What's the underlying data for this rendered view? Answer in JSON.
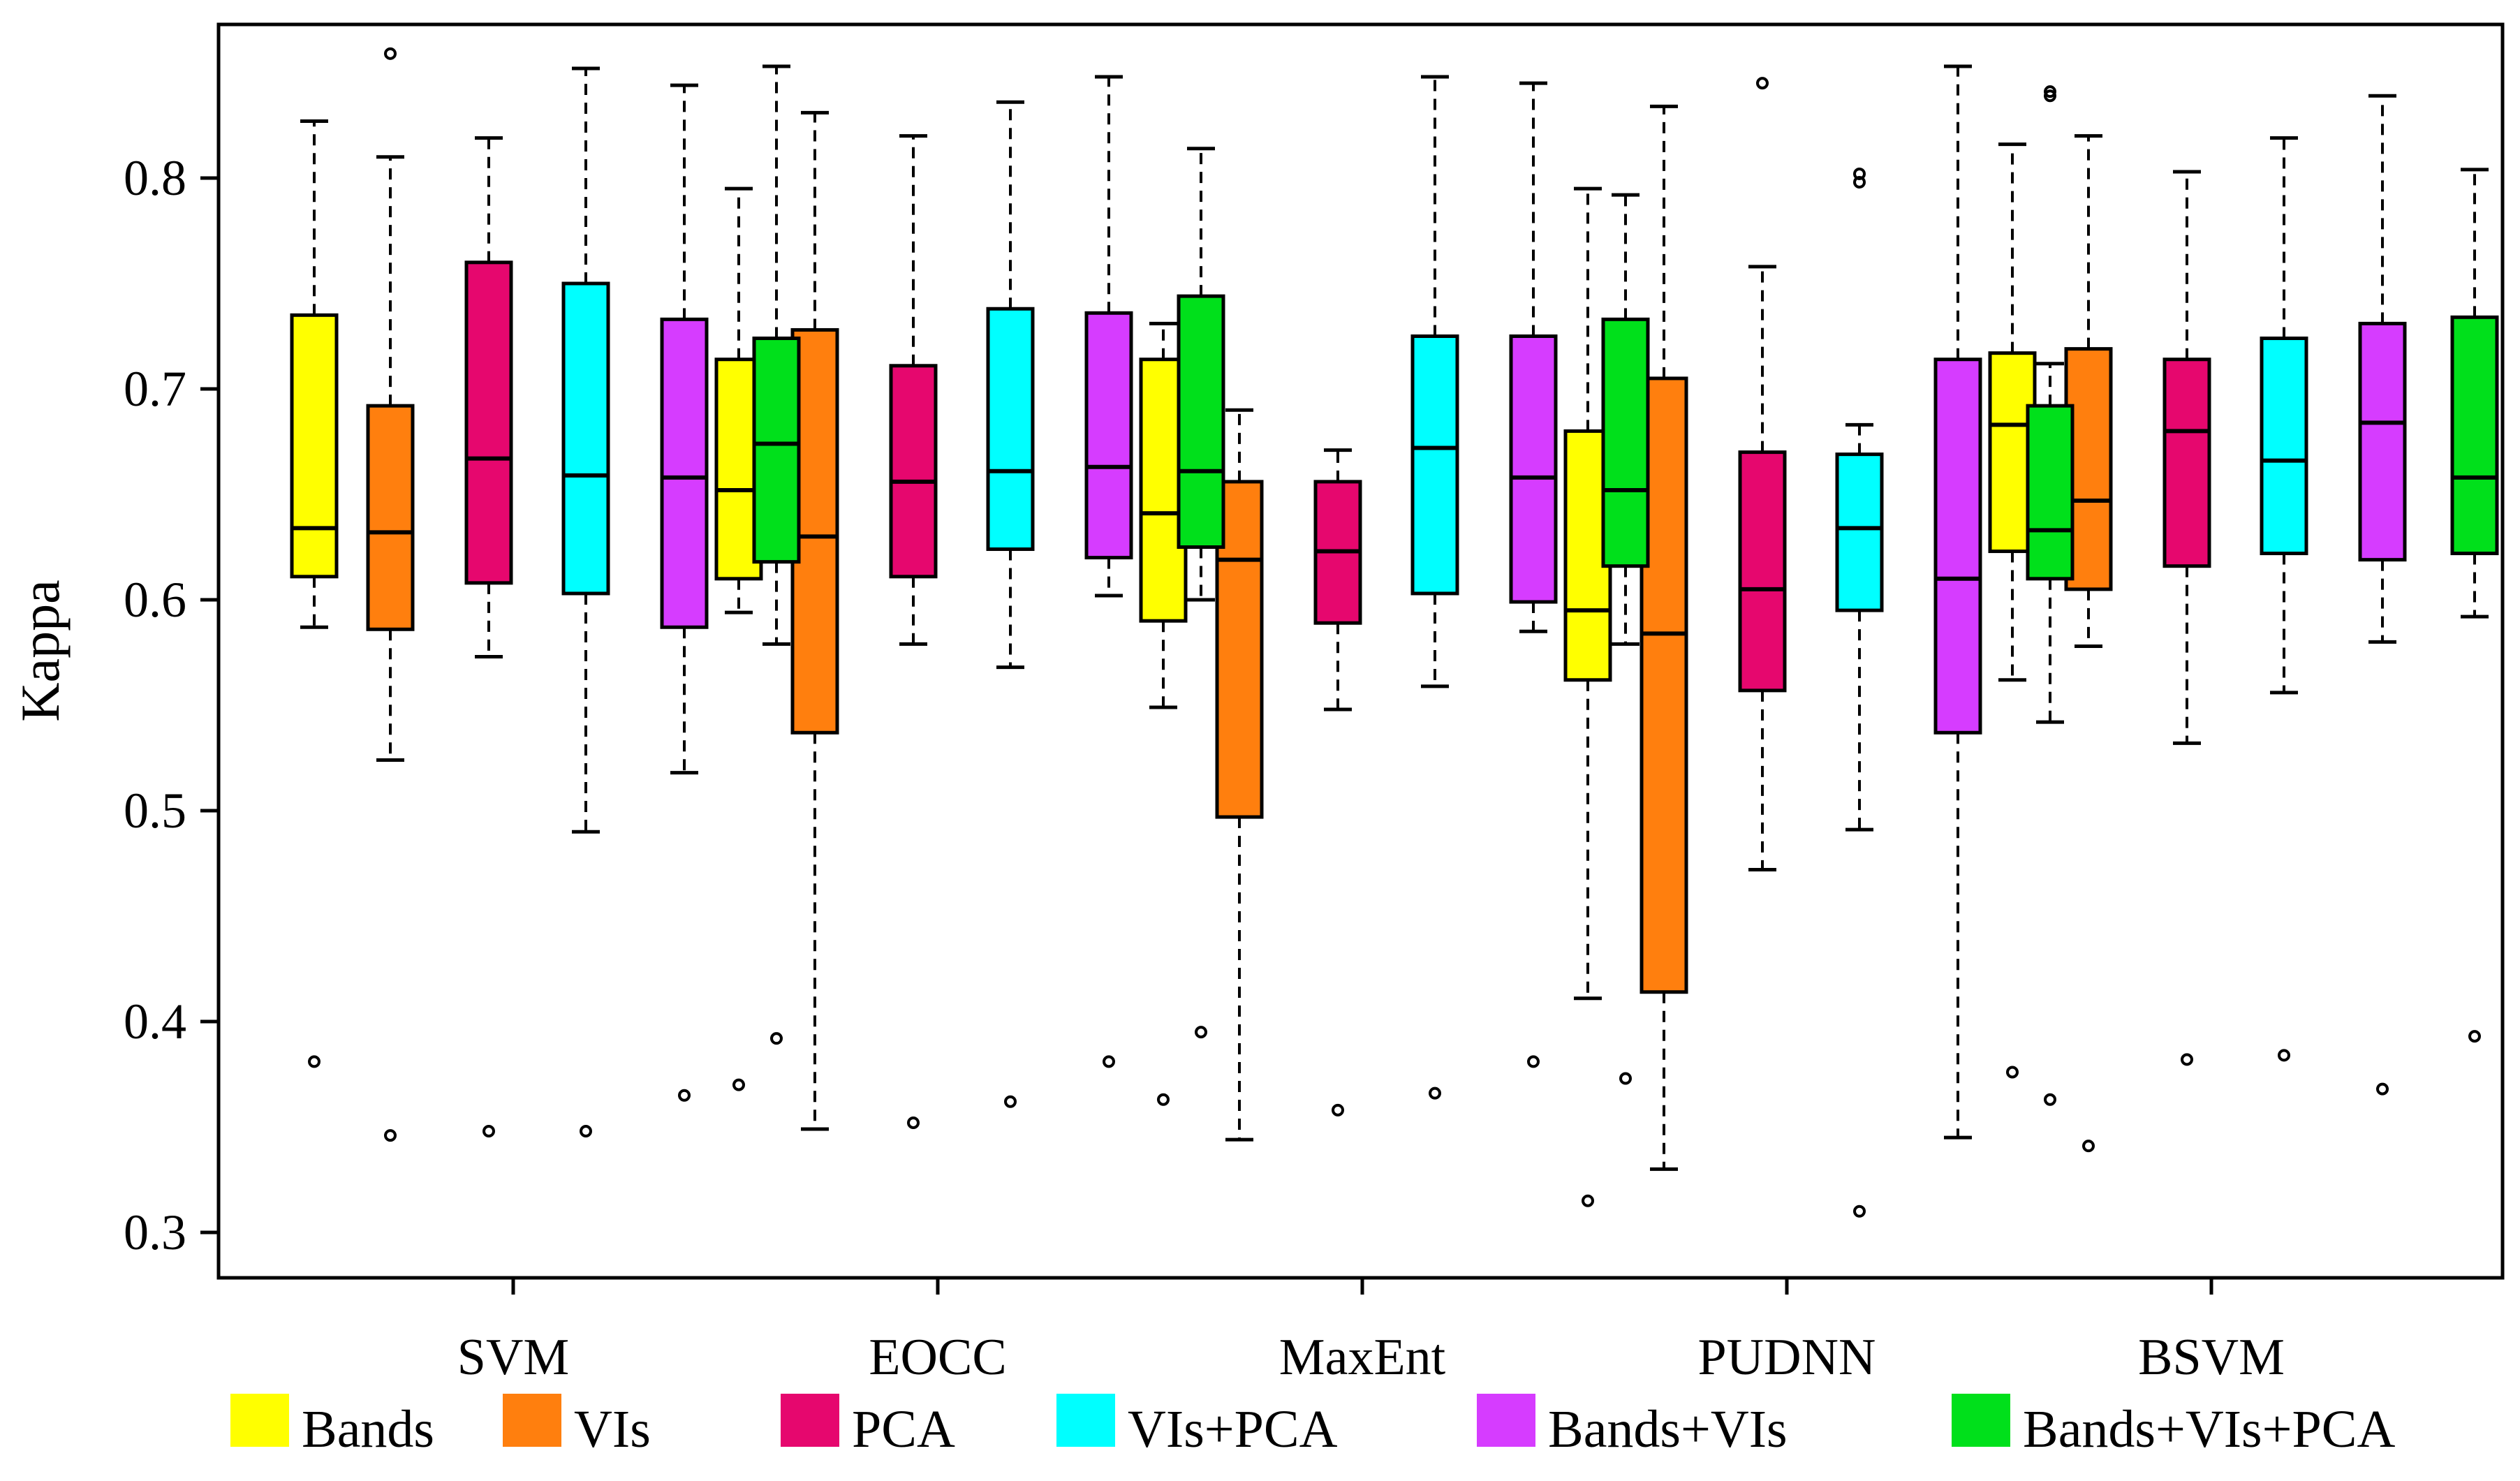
{
  "chart_data": {
    "type": "boxplot",
    "title": "",
    "xlabel": "",
    "ylabel": "Kappa",
    "ylim": [
      0.29,
      0.87
    ],
    "yticks": [
      0.3,
      0.4,
      0.5,
      0.6,
      0.7,
      0.8
    ],
    "ytick_labels": [
      "0.3",
      "0.4",
      "0.5",
      "0.6",
      "0.7",
      "0.8"
    ],
    "grid": false,
    "legend_position": "bottom",
    "categories": [
      "SVM",
      "EOCC",
      "MaxEnt",
      "PUDNN",
      "BSVM"
    ],
    "series": [
      {
        "name": "Bands",
        "color": "#FFFF00",
        "boxes": [
          {
            "whisker_low": 0.587,
            "q1": 0.611,
            "median": 0.634,
            "q3": 0.735,
            "whisker_high": 0.827,
            "outliers": [
              0.381
            ]
          },
          {
            "whisker_low": 0.594,
            "q1": 0.61,
            "median": 0.652,
            "q3": 0.714,
            "whisker_high": 0.795,
            "outliers": [
              0.37
            ]
          },
          {
            "whisker_low": 0.549,
            "q1": 0.59,
            "median": 0.641,
            "q3": 0.714,
            "whisker_high": 0.731,
            "outliers": [
              0.363
            ]
          },
          {
            "whisker_low": 0.411,
            "q1": 0.562,
            "median": 0.595,
            "q3": 0.68,
            "whisker_high": 0.795,
            "outliers": [
              0.315
            ]
          },
          {
            "whisker_low": 0.562,
            "q1": 0.623,
            "median": 0.683,
            "q3": 0.717,
            "whisker_high": 0.816,
            "outliers": [
              0.376
            ]
          }
        ]
      },
      {
        "name": "VIs",
        "color": "#FF7F0E",
        "boxes": [
          {
            "whisker_low": 0.524,
            "q1": 0.586,
            "median": 0.632,
            "q3": 0.692,
            "whisker_high": 0.81,
            "outliers": [
              0.346,
              0.859
            ]
          },
          {
            "whisker_low": 0.349,
            "q1": 0.537,
            "median": 0.63,
            "q3": 0.728,
            "whisker_high": 0.831,
            "outliers": []
          },
          {
            "whisker_low": 0.344,
            "q1": 0.497,
            "median": 0.619,
            "q3": 0.656,
            "whisker_high": 0.69,
            "outliers": []
          },
          {
            "whisker_low": 0.33,
            "q1": 0.414,
            "median": 0.584,
            "q3": 0.705,
            "whisker_high": 0.834,
            "outliers": []
          },
          {
            "whisker_low": 0.578,
            "q1": 0.605,
            "median": 0.647,
            "q3": 0.719,
            "whisker_high": 0.82,
            "outliers": [
              0.341
            ]
          }
        ]
      },
      {
        "name": "PCA",
        "color": "#E6076E",
        "boxes": [
          {
            "whisker_low": 0.573,
            "q1": 0.608,
            "median": 0.667,
            "q3": 0.76,
            "whisker_high": 0.819,
            "outliers": [
              0.348
            ]
          },
          {
            "whisker_low": 0.579,
            "q1": 0.611,
            "median": 0.656,
            "q3": 0.711,
            "whisker_high": 0.82,
            "outliers": [
              0.352
            ]
          },
          {
            "whisker_low": 0.548,
            "q1": 0.589,
            "median": 0.623,
            "q3": 0.656,
            "whisker_high": 0.671,
            "outliers": [
              0.358
            ]
          },
          {
            "whisker_low": 0.472,
            "q1": 0.557,
            "median": 0.605,
            "q3": 0.67,
            "whisker_high": 0.758,
            "outliers": [
              0.845
            ]
          },
          {
            "whisker_low": 0.532,
            "q1": 0.616,
            "median": 0.68,
            "q3": 0.714,
            "whisker_high": 0.803,
            "outliers": [
              0.382
            ]
          }
        ]
      },
      {
        "name": "VIs+PCA",
        "color": "#00FFFF",
        "boxes": [
          {
            "whisker_low": 0.49,
            "q1": 0.603,
            "median": 0.659,
            "q3": 0.75,
            "whisker_high": 0.852,
            "outliers": [
              0.348
            ]
          },
          {
            "whisker_low": 0.568,
            "q1": 0.624,
            "median": 0.661,
            "q3": 0.738,
            "whisker_high": 0.836,
            "outliers": [
              0.362
            ]
          },
          {
            "whisker_low": 0.559,
            "q1": 0.603,
            "median": 0.672,
            "q3": 0.725,
            "whisker_high": 0.848,
            "outliers": [
              0.366
            ]
          },
          {
            "whisker_low": 0.491,
            "q1": 0.595,
            "median": 0.634,
            "q3": 0.669,
            "whisker_high": 0.683,
            "outliers": [
              0.31,
              0.798,
              0.802
            ]
          },
          {
            "whisker_low": 0.556,
            "q1": 0.622,
            "median": 0.666,
            "q3": 0.724,
            "whisker_high": 0.819,
            "outliers": [
              0.384
            ]
          }
        ]
      },
      {
        "name": "Bands+VIs",
        "color": "#D63CFF",
        "boxes": [
          {
            "whisker_low": 0.518,
            "q1": 0.587,
            "median": 0.658,
            "q3": 0.733,
            "whisker_high": 0.844,
            "outliers": [
              0.365
            ]
          },
          {
            "whisker_low": 0.602,
            "q1": 0.62,
            "median": 0.663,
            "q3": 0.736,
            "whisker_high": 0.848,
            "outliers": [
              0.381
            ]
          },
          {
            "whisker_low": 0.585,
            "q1": 0.599,
            "median": 0.658,
            "q3": 0.725,
            "whisker_high": 0.845,
            "outliers": [
              0.381
            ]
          },
          {
            "whisker_low": 0.345,
            "q1": 0.537,
            "median": 0.61,
            "q3": 0.714,
            "whisker_high": 0.853,
            "outliers": []
          },
          {
            "whisker_low": 0.58,
            "q1": 0.619,
            "median": 0.684,
            "q3": 0.731,
            "whisker_high": 0.839,
            "outliers": [
              0.368
            ]
          }
        ]
      },
      {
        "name": "Bands+VIs+PCA",
        "color": "#00E01B",
        "boxes": [
          {
            "whisker_low": 0.579,
            "q1": 0.618,
            "median": 0.674,
            "q3": 0.724,
            "whisker_high": 0.853,
            "outliers": [
              0.392
            ]
          },
          {
            "whisker_low": 0.6,
            "q1": 0.625,
            "median": 0.661,
            "q3": 0.744,
            "whisker_high": 0.814,
            "outliers": [
              0.395
            ]
          },
          {
            "whisker_low": 0.579,
            "q1": 0.616,
            "median": 0.652,
            "q3": 0.733,
            "whisker_high": 0.792,
            "outliers": [
              0.373
            ]
          },
          {
            "whisker_low": 0.542,
            "q1": 0.61,
            "median": 0.633,
            "q3": 0.692,
            "whisker_high": 0.712,
            "outliers": [
              0.363,
              0.839,
              0.841
            ]
          },
          {
            "whisker_low": 0.592,
            "q1": 0.622,
            "median": 0.658,
            "q3": 0.734,
            "whisker_high": 0.804,
            "outliers": [
              0.393
            ]
          }
        ]
      }
    ]
  }
}
